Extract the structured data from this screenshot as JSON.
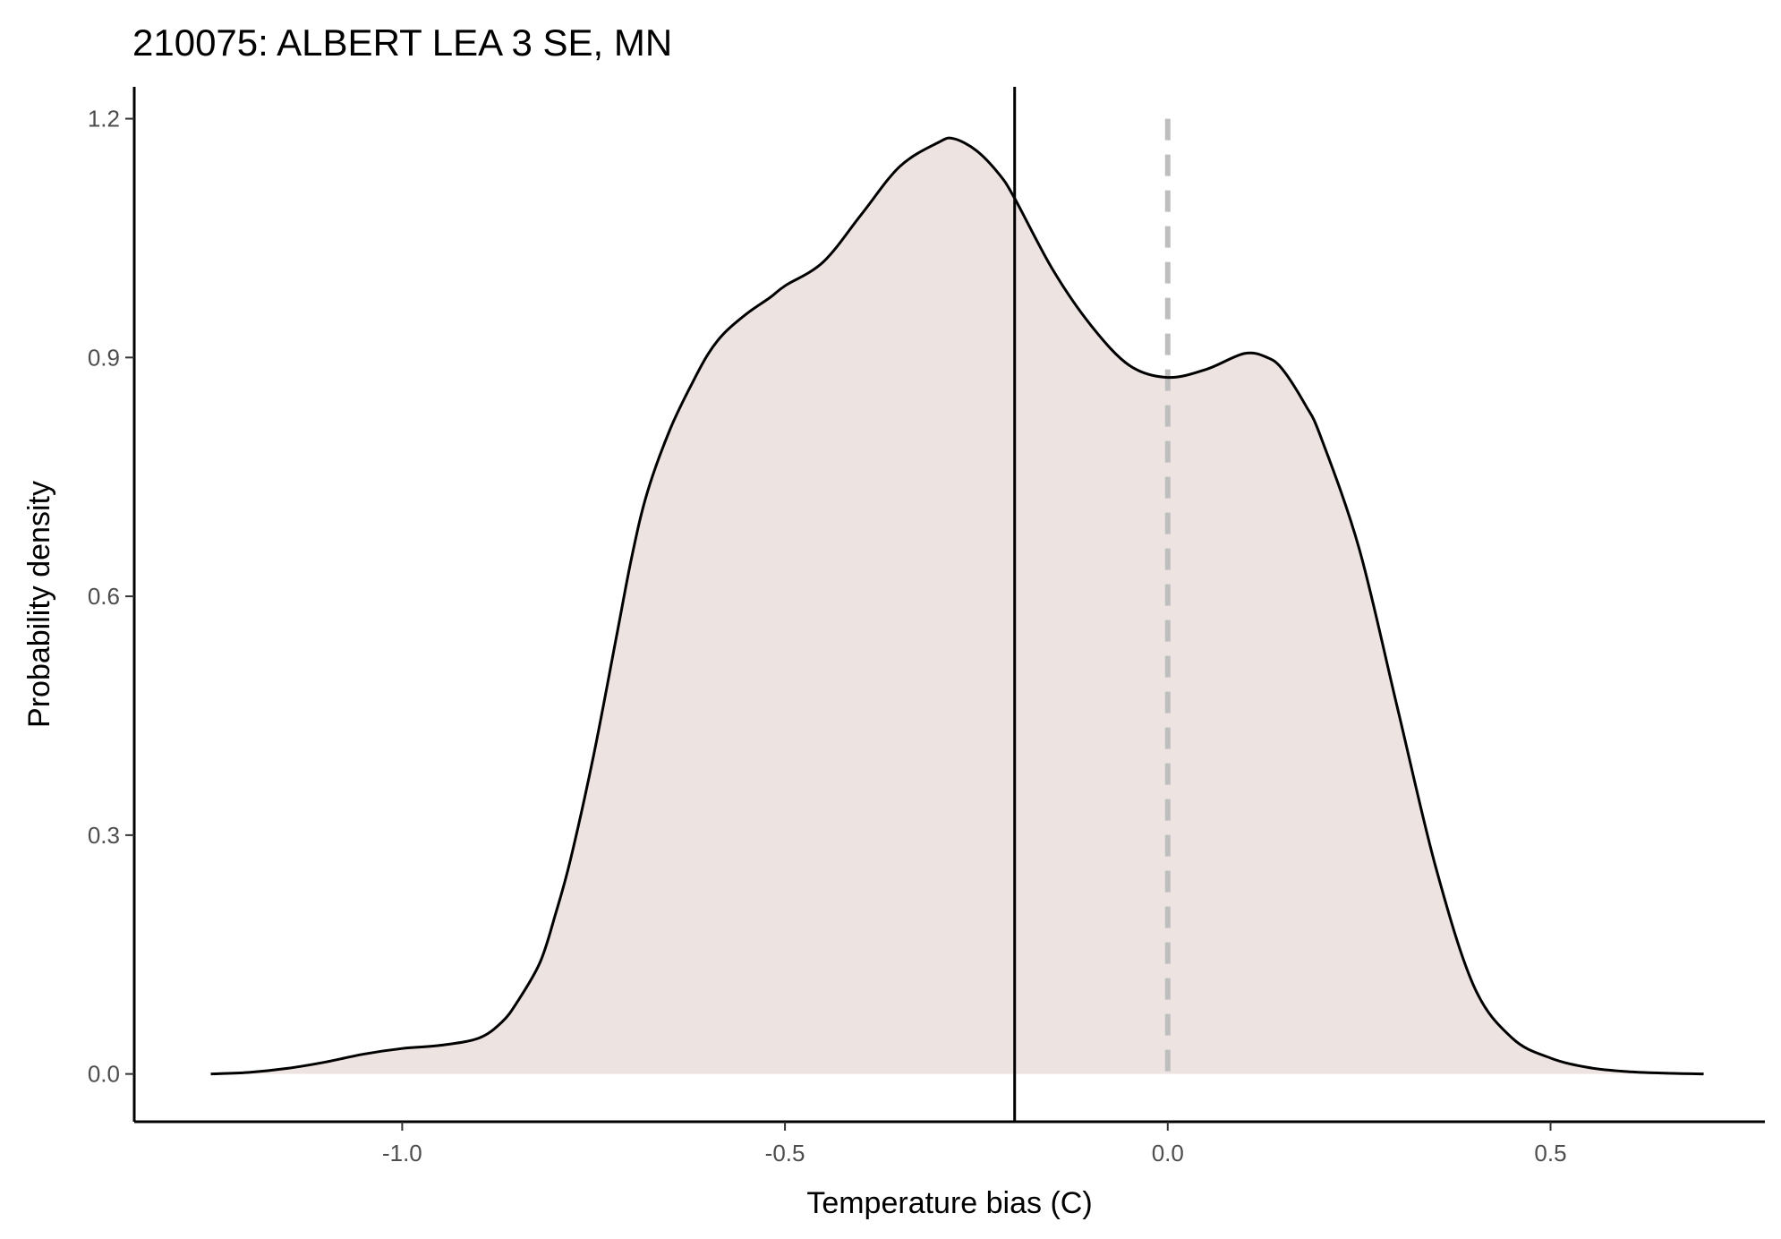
{
  "chart_data": {
    "type": "area",
    "title": "210075: ALBERT LEA 3 SE, MN",
    "xlabel": "Temperature bias (C)",
    "ylabel": "Probability density",
    "xlim": [
      -1.35,
      0.78
    ],
    "ylim": [
      -0.06,
      1.24
    ],
    "xticks": [
      -1.0,
      -0.5,
      0.0,
      0.5
    ],
    "xtick_labels": [
      "-1.0",
      "-0.5",
      "0.0",
      "0.5"
    ],
    "yticks": [
      0.0,
      0.3,
      0.6,
      0.9,
      1.2
    ],
    "ytick_labels": [
      "0.0",
      "0.3",
      "0.6",
      "0.9",
      "1.2"
    ],
    "grid": false,
    "fill_color": "#ede3e0",
    "line_color": "#000000",
    "reference_lines": [
      {
        "x": -0.2,
        "style": "solid",
        "color": "#000000"
      },
      {
        "x": 0.0,
        "style": "dashed",
        "color": "#bebebe"
      }
    ],
    "series": [
      {
        "x": [
          -1.25,
          -1.2,
          -1.15,
          -1.1,
          -1.05,
          -1.0,
          -0.95,
          -0.9,
          -0.87,
          -0.85,
          -0.82,
          -0.8,
          -0.78,
          -0.75,
          -0.72,
          -0.7,
          -0.68,
          -0.65,
          -0.62,
          -0.6,
          -0.58,
          -0.55,
          -0.52,
          -0.5,
          -0.45,
          -0.4,
          -0.35,
          -0.3,
          -0.28,
          -0.25,
          -0.22,
          -0.2,
          -0.15,
          -0.1,
          -0.05,
          0.0,
          0.05,
          0.1,
          0.13,
          0.15,
          0.18,
          0.2,
          0.25,
          0.3,
          0.35,
          0.4,
          0.45,
          0.5,
          0.55,
          0.6,
          0.65,
          0.7
        ],
        "y": [
          0.0,
          0.002,
          0.007,
          0.015,
          0.025,
          0.032,
          0.036,
          0.045,
          0.065,
          0.09,
          0.14,
          0.2,
          0.27,
          0.4,
          0.55,
          0.65,
          0.73,
          0.81,
          0.87,
          0.905,
          0.93,
          0.955,
          0.975,
          0.99,
          1.02,
          1.08,
          1.14,
          1.17,
          1.175,
          1.16,
          1.13,
          1.1,
          1.01,
          0.94,
          0.89,
          0.875,
          0.885,
          0.905,
          0.9,
          0.885,
          0.84,
          0.8,
          0.66,
          0.46,
          0.26,
          0.11,
          0.045,
          0.02,
          0.008,
          0.003,
          0.001,
          0.0
        ]
      }
    ]
  }
}
